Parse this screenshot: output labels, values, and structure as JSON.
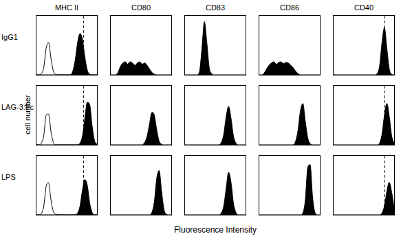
{
  "chart_data": {
    "type": "histogram_grid",
    "xlabel": "Fluorescence Intensity",
    "ylabel": "cell number",
    "tick_labels": false,
    "grid": false,
    "x": [
      0,
      4,
      8,
      12,
      16,
      20,
      24,
      28,
      32,
      36,
      40,
      44,
      48,
      52,
      56,
      60,
      64,
      68,
      72,
      76,
      80,
      84,
      88,
      92,
      96,
      100
    ],
    "xlim": [
      0,
      100
    ],
    "ylim": [
      0,
      100
    ],
    "columns": [
      "MHC II",
      "CD80",
      "CD83",
      "CD86",
      "CD40"
    ],
    "rows": [
      "IgG1",
      "LAG-3:Fc",
      "LPS"
    ],
    "panels": [
      [
        {
          "series": [
            {
              "type": "line",
              "color": "#000000",
              "values": [
                0,
                0,
                2,
                12,
                45,
                55,
                28,
                6,
                1,
                0,
                0,
                0,
                0,
                0,
                0,
                0,
                0,
                0,
                0,
                0,
                0,
                0,
                0,
                0,
                0,
                0
              ]
            },
            {
              "type": "area",
              "color": "#000000",
              "values": [
                0,
                0,
                0,
                0,
                0,
                0,
                0,
                0,
                0,
                0,
                0,
                0,
                0,
                0,
                0,
                6,
                25,
                55,
                70,
                60,
                30,
                8,
                1,
                0,
                0,
                0
              ]
            }
          ],
          "annotations": [
            {
              "x": 78,
              "line_style": "dashed"
            }
          ]
        },
        {
          "series": [
            {
              "type": "area",
              "color": "#000000",
              "values": [
                0,
                0,
                0,
                4,
                14,
                20,
                22,
                18,
                22,
                20,
                16,
                20,
                22,
                18,
                20,
                16,
                10,
                4,
                1,
                0,
                0,
                0,
                0,
                0,
                0,
                0
              ]
            }
          ]
        },
        {
          "series": [
            {
              "type": "area",
              "color": "#000000",
              "values": [
                0,
                0,
                0,
                0,
                0,
                0,
                6,
                45,
                90,
                55,
                12,
                2,
                0,
                0,
                0,
                0,
                0,
                0,
                0,
                0,
                0,
                0,
                0,
                0,
                0,
                0
              ]
            }
          ]
        },
        {
          "series": [
            {
              "type": "area",
              "color": "#000000",
              "values": [
                0,
                0,
                3,
                10,
                16,
                20,
                22,
                18,
                21,
                22,
                19,
                21,
                20,
                16,
                12,
                6,
                2,
                0,
                0,
                0,
                0,
                0,
                0,
                0,
                0,
                0
              ]
            }
          ]
        },
        {
          "series": [
            {
              "type": "area",
              "color": "#000000",
              "values": [
                0,
                0,
                0,
                0,
                0,
                0,
                0,
                0,
                0,
                0,
                0,
                0,
                0,
                0,
                0,
                0,
                0,
                0,
                2,
                15,
                55,
                80,
                45,
                10,
                1,
                0
              ]
            }
          ],
          "annotations": [
            {
              "x": 84,
              "line_style": "dashed"
            }
          ]
        }
      ],
      [
        {
          "series": [
            {
              "type": "line",
              "color": "#000000",
              "values": [
                0,
                0,
                3,
                15,
                50,
                52,
                22,
                4,
                0,
                0,
                0,
                0,
                0,
                0,
                0,
                0,
                0,
                0,
                0,
                0,
                0,
                0,
                0,
                0,
                0,
                0
              ]
            },
            {
              "type": "area",
              "color": "#000000",
              "values": [
                0,
                0,
                0,
                0,
                0,
                0,
                0,
                0,
                0,
                0,
                0,
                0,
                0,
                0,
                0,
                0,
                0,
                0,
                3,
                15,
                45,
                72,
                68,
                32,
                7,
                1
              ]
            }
          ],
          "annotations": [
            {
              "x": 78,
              "line_style": "dashed"
            }
          ]
        },
        {
          "series": [
            {
              "type": "area",
              "color": "#000000",
              "values": [
                0,
                0,
                0,
                0,
                0,
                0,
                0,
                0,
                0,
                0,
                0,
                0,
                0,
                0,
                4,
                14,
                35,
                55,
                50,
                25,
                6,
                1,
                0,
                0,
                0,
                0
              ]
            }
          ]
        },
        {
          "series": [
            {
              "type": "area",
              "color": "#000000",
              "values": [
                0,
                0,
                0,
                0,
                0,
                0,
                0,
                0,
                0,
                0,
                0,
                0,
                0,
                0,
                0,
                4,
                18,
                48,
                65,
                45,
                15,
                3,
                0,
                0,
                0,
                0
              ]
            }
          ]
        },
        {
          "series": [
            {
              "type": "area",
              "color": "#000000",
              "values": [
                0,
                0,
                0,
                0,
                0,
                0,
                0,
                0,
                0,
                0,
                0,
                0,
                0,
                0,
                0,
                6,
                25,
                58,
                70,
                40,
                12,
                2,
                0,
                0,
                0,
                0
              ]
            }
          ]
        },
        {
          "series": [
            {
              "type": "area",
              "color": "#000000",
              "values": [
                0,
                0,
                0,
                0,
                0,
                0,
                0,
                0,
                0,
                0,
                0,
                0,
                0,
                0,
                0,
                0,
                0,
                0,
                0,
                3,
                18,
                50,
                70,
                48,
                15,
                3
              ]
            }
          ],
          "annotations": [
            {
              "x": 84,
              "line_style": "dashed"
            }
          ]
        }
      ],
      [
        {
          "series": [
            {
              "type": "line",
              "color": "#000000",
              "values": [
                0,
                0,
                2,
                14,
                48,
                54,
                25,
                5,
                1,
                0,
                0,
                0,
                0,
                0,
                0,
                0,
                0,
                0,
                0,
                0,
                0,
                0,
                0,
                0,
                0,
                0
              ]
            },
            {
              "type": "area",
              "color": "#000000",
              "values": [
                0,
                0,
                0,
                0,
                0,
                0,
                0,
                0,
                0,
                0,
                0,
                0,
                0,
                0,
                0,
                0,
                0,
                3,
                15,
                42,
                60,
                50,
                20,
                4,
                0,
                0
              ]
            }
          ],
          "annotations": [
            {
              "x": 78,
              "line_style": "dashed"
            }
          ]
        },
        {
          "series": [
            {
              "type": "area",
              "color": "#000000",
              "values": [
                0,
                0,
                0,
                0,
                0,
                0,
                0,
                0,
                0,
                0,
                0,
                0,
                0,
                0,
                0,
                0,
                0,
                4,
                22,
                62,
                75,
                40,
                9,
                1,
                0,
                0
              ]
            }
          ]
        },
        {
          "series": [
            {
              "type": "area",
              "color": "#000000",
              "values": [
                0,
                0,
                0,
                0,
                0,
                0,
                0,
                0,
                0,
                0,
                0,
                0,
                0,
                0,
                0,
                3,
                15,
                45,
                72,
                55,
                20,
                4,
                0,
                0,
                0,
                0
              ]
            }
          ]
        },
        {
          "series": [
            {
              "type": "area",
              "color": "#000000",
              "values": [
                0,
                0,
                0,
                0,
                0,
                0,
                0,
                0,
                0,
                0,
                0,
                0,
                0,
                0,
                0,
                0,
                0,
                0,
                3,
                25,
                80,
                85,
                30,
                4,
                0,
                0
              ]
            }
          ]
        },
        {
          "series": [
            {
              "type": "area",
              "color": "#000000",
              "values": [
                0,
                0,
                0,
                0,
                0,
                0,
                0,
                0,
                0,
                0,
                0,
                0,
                0,
                0,
                0,
                0,
                0,
                0,
                0,
                0,
                3,
                15,
                40,
                55,
                38,
                12
              ]
            }
          ],
          "annotations": [
            {
              "x": 84,
              "line_style": "dashed"
            }
          ]
        }
      ]
    ]
  }
}
